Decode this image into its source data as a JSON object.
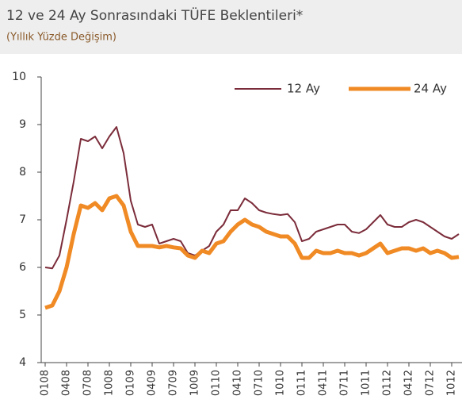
{
  "chart_data": {
    "type": "line",
    "title": "12 ve 24 Ay Sonrasındaki TÜFE Beklentileri*",
    "subtitle": "(Yıllık Yüzde Değişim)",
    "categories": [
      "0108",
      null,
      null,
      "0408",
      null,
      null,
      "0708",
      null,
      null,
      "1008",
      null,
      null,
      "0109",
      null,
      null,
      "0409",
      null,
      null,
      "0709",
      null,
      null,
      "1009",
      null,
      null,
      "0110",
      null,
      null,
      "0410",
      null,
      null,
      "0710",
      null,
      null,
      "1010",
      null,
      null,
      "0111",
      null,
      null,
      "0411",
      null,
      null,
      "0711",
      null,
      null,
      "1011",
      null,
      null,
      "0112",
      null,
      null,
      "0412",
      null,
      null,
      "0712",
      null,
      null,
      "1012",
      null
    ],
    "series": [
      {
        "name": "12 Ay",
        "color": "#7b2c3a",
        "values": [
          6.0,
          5.98,
          6.25,
          7.0,
          7.8,
          8.7,
          8.65,
          8.75,
          8.5,
          8.75,
          8.95,
          8.4,
          7.4,
          6.9,
          6.85,
          6.9,
          6.5,
          6.55,
          6.6,
          6.55,
          6.3,
          6.25,
          6.35,
          6.45,
          6.75,
          6.9,
          7.2,
          7.2,
          7.45,
          7.35,
          7.2,
          7.15,
          7.12,
          7.1,
          7.12,
          6.95,
          6.55,
          6.6,
          6.75,
          6.8,
          6.85,
          6.9,
          6.9,
          6.75,
          6.72,
          6.8,
          6.95,
          7.1,
          6.9,
          6.85,
          6.85,
          6.95,
          7.0,
          6.95,
          6.85,
          6.75,
          6.65,
          6.6,
          6.7
        ]
      },
      {
        "name": "24 Ay",
        "color": "#f08a24",
        "values": [
          5.15,
          5.2,
          5.5,
          6.0,
          6.7,
          7.3,
          7.25,
          7.35,
          7.2,
          7.45,
          7.5,
          7.3,
          6.75,
          6.45,
          6.45,
          6.45,
          6.42,
          6.45,
          6.42,
          6.4,
          6.25,
          6.2,
          6.35,
          6.3,
          6.5,
          6.55,
          6.75,
          6.9,
          7.0,
          6.9,
          6.85,
          6.75,
          6.7,
          6.65,
          6.65,
          6.5,
          6.2,
          6.2,
          6.35,
          6.3,
          6.3,
          6.35,
          6.3,
          6.3,
          6.25,
          6.3,
          6.4,
          6.5,
          6.3,
          6.35,
          6.4,
          6.4,
          6.35,
          6.4,
          6.3,
          6.35,
          6.3,
          6.2,
          6.22
        ]
      }
    ],
    "ylim": [
      4,
      10
    ],
    "yticks": [
      4,
      5,
      6,
      7,
      8,
      9,
      10
    ],
    "legend": "top-right"
  }
}
